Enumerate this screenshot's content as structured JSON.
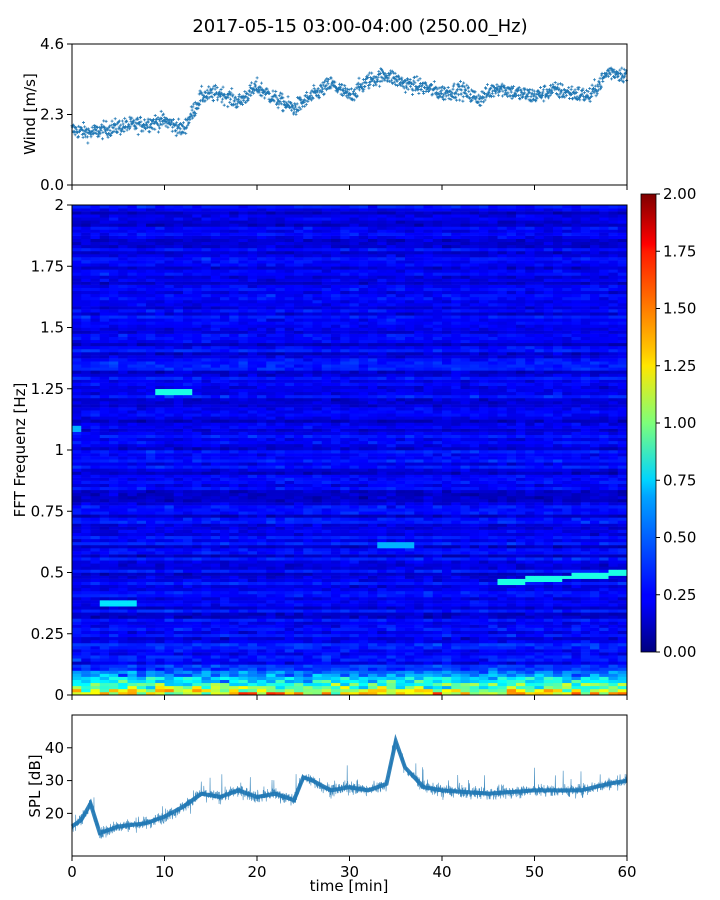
{
  "figure": {
    "title": "2017-05-15 03:00-04:00 (250.00_Hz)"
  },
  "chart_data": [
    {
      "type": "scatter",
      "name": "wind",
      "ylabel": "Wind [m/s]",
      "xlim": [
        0,
        60
      ],
      "ylim": [
        0.0,
        4.6
      ],
      "yticks": [
        0.0,
        2.3,
        4.6
      ],
      "ytick_labels": [
        "0.0",
        "2.3",
        "4.6"
      ],
      "color": "#1f77b4",
      "marker": "+",
      "trend": {
        "x": [
          0,
          2,
          5,
          8,
          10,
          12,
          14,
          16,
          18,
          20,
          22,
          24,
          26,
          28,
          30,
          32,
          34,
          36,
          38,
          40,
          42,
          44,
          46,
          48,
          50,
          52,
          54,
          56,
          58,
          60
        ],
        "y": [
          1.8,
          1.7,
          1.9,
          2.0,
          2.1,
          1.8,
          2.9,
          3.0,
          2.7,
          3.2,
          2.8,
          2.5,
          2.9,
          3.3,
          2.9,
          3.4,
          3.6,
          3.3,
          3.2,
          3.0,
          3.1,
          2.8,
          3.2,
          3.0,
          2.9,
          3.1,
          3.0,
          2.9,
          3.7,
          3.6
        ]
      }
    },
    {
      "type": "heatmap",
      "name": "spectrogram",
      "ylabel": "FFT Frequenz [Hz]",
      "xlim": [
        0,
        60
      ],
      "ylim": [
        0,
        2
      ],
      "yticks": [
        0,
        0.25,
        0.5,
        0.75,
        1,
        1.25,
        1.5,
        1.75,
        2
      ],
      "ytick_labels": [
        "0",
        "0.25",
        "0.5",
        "0.75",
        "1",
        "1.25",
        "1.5",
        "1.75",
        "2"
      ],
      "colormap": "jet",
      "colorbar": {
        "range": [
          0.0,
          2.0
        ],
        "ticks": [
          0.0,
          0.25,
          0.5,
          0.75,
          1.0,
          1.25,
          1.5,
          1.75,
          2.0
        ],
        "tick_labels": [
          "0.00",
          "0.25",
          "0.50",
          "0.75",
          "1.00",
          "1.25",
          "1.50",
          "1.75",
          "2.00"
        ]
      },
      "background_level": 0.22,
      "low_frequency_band": {
        "freq_max": 0.12,
        "level": 0.9
      },
      "features": [
        {
          "t_start": 0,
          "t_end": 0.5,
          "freq": 1.09,
          "level": 0.6
        },
        {
          "t_start": 3.2,
          "t_end": 7.2,
          "freq": 0.37,
          "level": 0.7
        },
        {
          "t_start": 9.5,
          "t_end": 13.0,
          "freq": 1.24,
          "level": 0.8
        },
        {
          "t_start": 33.5,
          "t_end": 36.5,
          "freq": 0.61,
          "level": 0.6
        },
        {
          "t_start": 46,
          "t_end": 60,
          "freq_start": 0.46,
          "freq_end": 0.5,
          "level": 0.8
        }
      ]
    },
    {
      "type": "line",
      "name": "spl",
      "ylabel": "SPL [dB]",
      "xlabel": "time [min]",
      "xlim": [
        0,
        60
      ],
      "ylim": [
        7,
        50
      ],
      "yticks": [
        20,
        30,
        40
      ],
      "ytick_labels": [
        "20",
        "30",
        "40"
      ],
      "xticks": [
        0,
        10,
        20,
        30,
        40,
        50,
        60
      ],
      "xtick_labels": [
        "0",
        "10",
        "20",
        "30",
        "40",
        "50",
        "60"
      ],
      "color": "#1f77b4",
      "trend": {
        "x": [
          0,
          1,
          2,
          3,
          5,
          8,
          10,
          12,
          14,
          16,
          18,
          20,
          22,
          24,
          25,
          26,
          28,
          30,
          32,
          34,
          35,
          36,
          38,
          40,
          45,
          50,
          55,
          58,
          60
        ],
        "y": [
          16,
          18,
          23,
          14,
          16,
          17,
          19,
          22,
          26,
          25,
          27,
          25,
          26,
          24,
          31,
          30,
          27,
          28,
          27,
          29,
          42,
          34,
          28,
          27,
          26,
          27,
          27,
          29,
          30
        ]
      }
    }
  ]
}
